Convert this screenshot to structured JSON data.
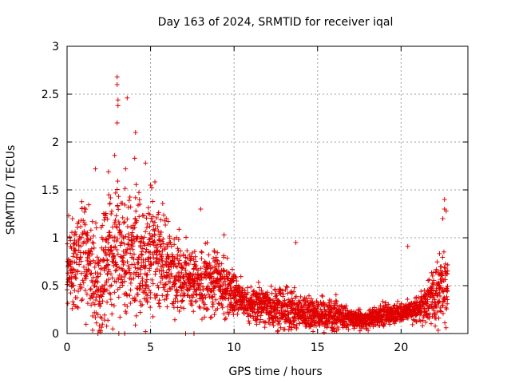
{
  "chart_data": {
    "type": "scatter",
    "title": "Day 163 of 2024, SRMTID for receiver iqal",
    "xlabel": "GPS time / hours",
    "ylabel": "SRMTID / TECUs",
    "xlim": [
      0,
      24
    ],
    "ylim": [
      0,
      3
    ],
    "xticks": [
      0,
      5,
      10,
      15,
      20
    ],
    "yticks": [
      0,
      0.5,
      1,
      1.5,
      2,
      2.5,
      3
    ],
    "xtick_labels": [
      "0",
      "5",
      "10",
      "15",
      "20"
    ],
    "ytick_labels": [
      "0",
      "0.5",
      "1",
      "1.5",
      "2",
      "2.5",
      "3"
    ],
    "grid": true,
    "marker": "plus",
    "color": "#e00000",
    "series": [
      {
        "name": "SRMTID",
        "envelope": [
          {
            "t": 0.0,
            "mean": 0.7,
            "spread": 0.35
          },
          {
            "t": 0.5,
            "mean": 0.75,
            "spread": 0.45
          },
          {
            "t": 1.0,
            "mean": 0.9,
            "spread": 0.5
          },
          {
            "t": 1.5,
            "mean": 0.6,
            "spread": 0.5
          },
          {
            "t": 2.0,
            "mean": 0.45,
            "spread": 0.45
          },
          {
            "t": 2.5,
            "mean": 0.85,
            "spread": 0.6
          },
          {
            "t": 3.0,
            "mean": 0.9,
            "spread": 0.6
          },
          {
            "t": 3.5,
            "mean": 0.75,
            "spread": 0.55
          },
          {
            "t": 4.0,
            "mean": 0.85,
            "spread": 0.6
          },
          {
            "t": 4.5,
            "mean": 0.7,
            "spread": 0.5
          },
          {
            "t": 5.0,
            "mean": 0.8,
            "spread": 0.55
          },
          {
            "t": 5.5,
            "mean": 0.85,
            "spread": 0.45
          },
          {
            "t": 6.0,
            "mean": 0.7,
            "spread": 0.4
          },
          {
            "t": 7.0,
            "mean": 0.6,
            "spread": 0.3
          },
          {
            "t": 8.0,
            "mean": 0.5,
            "spread": 0.3
          },
          {
            "t": 9.0,
            "mean": 0.55,
            "spread": 0.3
          },
          {
            "t": 10.0,
            "mean": 0.4,
            "spread": 0.2
          },
          {
            "t": 11.0,
            "mean": 0.3,
            "spread": 0.15
          },
          {
            "t": 12.0,
            "mean": 0.3,
            "spread": 0.2
          },
          {
            "t": 13.0,
            "mean": 0.25,
            "spread": 0.2
          },
          {
            "t": 14.0,
            "mean": 0.22,
            "spread": 0.15
          },
          {
            "t": 15.0,
            "mean": 0.2,
            "spread": 0.15
          },
          {
            "t": 16.0,
            "mean": 0.2,
            "spread": 0.15
          },
          {
            "t": 17.0,
            "mean": 0.15,
            "spread": 0.08
          },
          {
            "t": 18.0,
            "mean": 0.15,
            "spread": 0.08
          },
          {
            "t": 19.0,
            "mean": 0.2,
            "spread": 0.1
          },
          {
            "t": 20.0,
            "mean": 0.22,
            "spread": 0.1
          },
          {
            "t": 21.0,
            "mean": 0.25,
            "spread": 0.12
          },
          {
            "t": 22.0,
            "mean": 0.4,
            "spread": 0.25
          },
          {
            "t": 22.8,
            "mean": 0.55,
            "spread": 0.35
          }
        ],
        "outliers": [
          {
            "x": 3.0,
            "y": 2.68
          },
          {
            "x": 3.0,
            "y": 2.6
          },
          {
            "x": 3.05,
            "y": 2.44
          },
          {
            "x": 3.05,
            "y": 2.38
          },
          {
            "x": 3.0,
            "y": 2.2
          },
          {
            "x": 3.6,
            "y": 2.46
          },
          {
            "x": 4.1,
            "y": 2.1
          },
          {
            "x": 2.85,
            "y": 1.86
          },
          {
            "x": 4.05,
            "y": 1.83
          },
          {
            "x": 3.5,
            "y": 1.72
          },
          {
            "x": 1.7,
            "y": 1.72
          },
          {
            "x": 4.7,
            "y": 1.78
          },
          {
            "x": 5.0,
            "y": 1.55
          },
          {
            "x": 8.0,
            "y": 1.3
          },
          {
            "x": 9.4,
            "y": 1.03
          },
          {
            "x": 13.7,
            "y": 0.95
          },
          {
            "x": 20.4,
            "y": 0.91
          },
          {
            "x": 22.6,
            "y": 1.4
          },
          {
            "x": 22.6,
            "y": 1.3
          },
          {
            "x": 22.7,
            "y": 1.28
          },
          {
            "x": 22.5,
            "y": 1.2
          },
          {
            "x": 1.85,
            "y": 0.0
          },
          {
            "x": 3.1,
            "y": 0.0
          },
          {
            "x": 3.45,
            "y": 0.0
          },
          {
            "x": 4.7,
            "y": 0.02
          },
          {
            "x": 7.1,
            "y": 0.0
          },
          {
            "x": 7.6,
            "y": 0.0
          }
        ]
      }
    ]
  }
}
